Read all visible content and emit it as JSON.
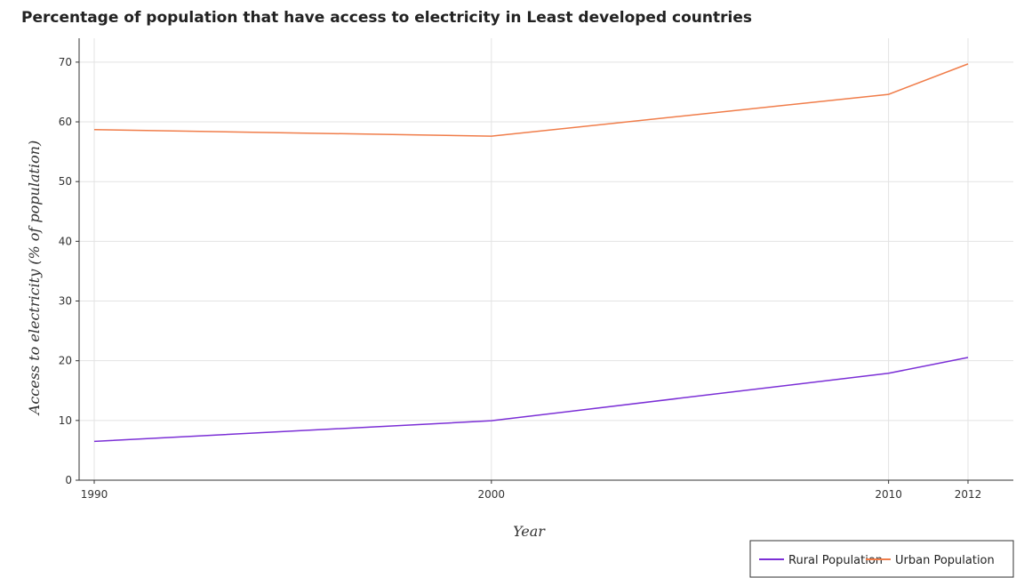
{
  "chart_data": {
    "type": "line",
    "title": "Percentage of population that have access to electricity in Least developed countries",
    "xlabel": "Year",
    "ylabel": "Access to electricity (% of population)",
    "x": [
      "1990",
      "2000",
      "2010",
      "2012"
    ],
    "ylim": [
      0,
      74
    ],
    "yticks": [
      0,
      10,
      20,
      30,
      40,
      50,
      60,
      70
    ],
    "grid": true,
    "legend_position": "bottom-right",
    "series": [
      {
        "name": "Rural Population",
        "color": "#7b2fd6",
        "values": [
          6.5,
          9.95,
          17.9,
          20.55
        ]
      },
      {
        "name": "Urban Population",
        "color": "#f07d4a",
        "values": [
          58.7,
          57.6,
          64.6,
          69.7
        ]
      }
    ]
  }
}
